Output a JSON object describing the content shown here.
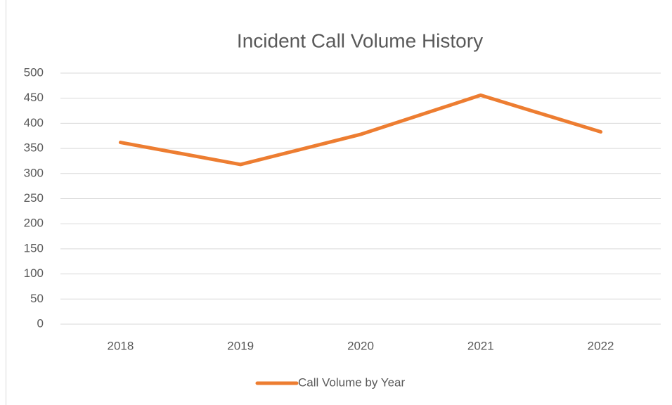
{
  "chart_data": {
    "type": "line",
    "title": "Incident Call Volume History",
    "categories": [
      "2018",
      "2019",
      "2020",
      "2021",
      "2022"
    ],
    "series": [
      {
        "name": "Call Volume by Year",
        "color": "#ed7d31",
        "values": [
          362,
          318,
          378,
          456,
          383
        ]
      }
    ],
    "ylim": [
      0,
      500
    ],
    "yticks": [
      0,
      50,
      100,
      150,
      200,
      250,
      300,
      350,
      400,
      450,
      500
    ],
    "grid": true,
    "legend": "bottom"
  }
}
